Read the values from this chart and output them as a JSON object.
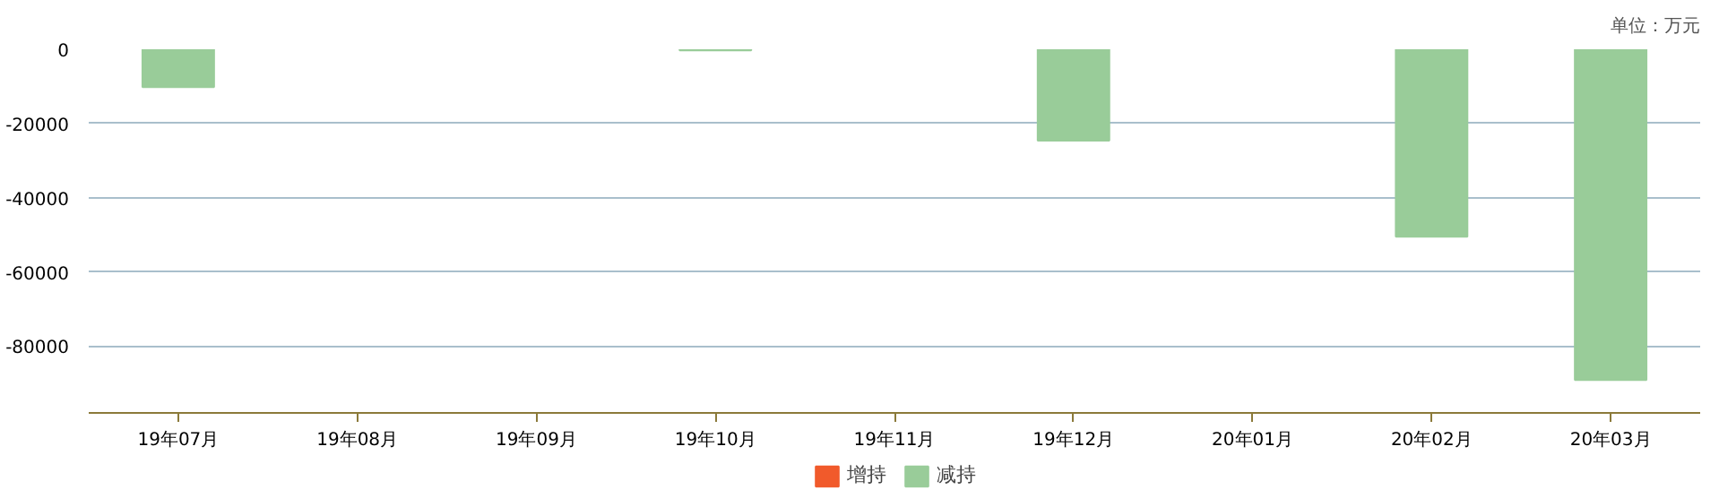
{
  "chart_data": {
    "type": "bar",
    "annotations": [
      "单位：万元"
    ],
    "categories": [
      "19年07月",
      "19年08月",
      "19年09月",
      "19年10月",
      "19年11月",
      "19年12月",
      "20年01月",
      "20年02月",
      "20年03月"
    ],
    "series": [
      {
        "name": "增持",
        "color": "#f15a2b",
        "values": [
          null,
          null,
          null,
          null,
          null,
          null,
          null,
          null,
          null
        ]
      },
      {
        "name": "减持",
        "color": "#99cc99",
        "values": [
          -10200,
          null,
          null,
          -300,
          null,
          -24600,
          null,
          -50500,
          -89100
        ]
      }
    ],
    "ylim": [
      -98000,
      0
    ],
    "yticks": [
      0,
      -20000,
      -40000,
      -60000,
      -80000
    ],
    "grid": "y",
    "legend": "bottom"
  }
}
